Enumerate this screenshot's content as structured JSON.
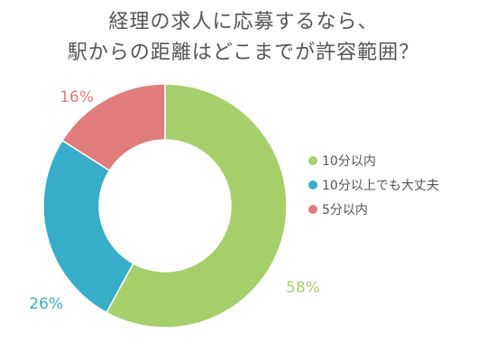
{
  "chart_data": {
    "type": "pie",
    "donut": true,
    "title_lines": [
      "経理の求人に応募するなら、",
      "駅からの距離はどこまでが許容範囲？"
    ],
    "categories": [
      "10分以内",
      "10分以上でも大丈夫",
      "5分以内"
    ],
    "values": [
      58,
      26,
      16
    ],
    "data_labels": [
      "58%",
      "26%",
      "16%"
    ],
    "colors": [
      "#a6cf6b",
      "#36adc9",
      "#e07c7b"
    ],
    "legend_position": "right"
  }
}
